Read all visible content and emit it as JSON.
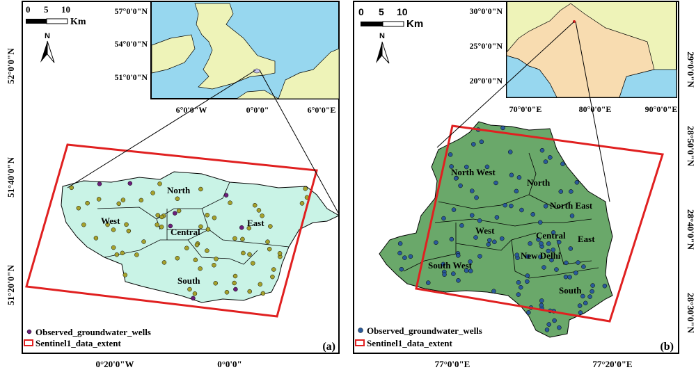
{
  "panel_a": {
    "label": "(a)",
    "scale": {
      "ticks": [
        "0",
        "5",
        "10"
      ],
      "unit": "Km"
    },
    "north": "N",
    "left_ticks": [
      "52°0'0\"N",
      "51°40'0\"N",
      "51°20'0\"N"
    ],
    "bottom_ticks": [
      "0°20'0\"W",
      "0°0'0\""
    ],
    "inset": {
      "left_ticks": [
        "57°0'0\"N",
        "54°0'0\"N",
        "51°0'0\"N"
      ],
      "bottom_ticks": [
        "6°0'0\"W",
        "0°0'0\"",
        "6°0'0\"E"
      ],
      "sea": "#97d7ef",
      "land": "#eef3b8"
    },
    "regions": [
      "North",
      "West",
      "Central",
      "East",
      "South"
    ],
    "legend": {
      "wells": "Observed_groundwater_wells",
      "extent": "Sentinel1_data_extent"
    },
    "fill": "#c9f3e6",
    "dot_colors": [
      "#a5a12c",
      "#6b1e7a"
    ]
  },
  "panel_b": {
    "label": "(b)",
    "scale": {
      "ticks": [
        "0",
        "5",
        "10"
      ],
      "unit": "Km"
    },
    "north": "N",
    "right_ticks": [
      "29°0'0\"N",
      "28°50'0\"N",
      "28°40'0\"N",
      "28°30'0\"N"
    ],
    "bottom_ticks": [
      "77°0'0\"E",
      "77°20'0\"E"
    ],
    "inset": {
      "left_ticks": [
        "30°0'0\"N",
        "25°0'0\"N",
        "20°0'0\"N"
      ],
      "bottom_ticks": [
        "70°0'0\"E",
        "80°0'0\"E",
        "90°0'0\"E"
      ],
      "sea": "#97d7ef",
      "land": "#f8dcb0"
    },
    "regions": [
      "North West",
      "North",
      "North East",
      "West",
      "Central",
      "East",
      "New Delhi",
      "South West",
      "South"
    ],
    "legend": {
      "wells": "Observed_groundwater_wells",
      "extent": "Sentinel1_data_extent"
    },
    "fill": "#6aa86a",
    "dot_color": "#2a5a9a"
  },
  "extent_color": "#e02020"
}
